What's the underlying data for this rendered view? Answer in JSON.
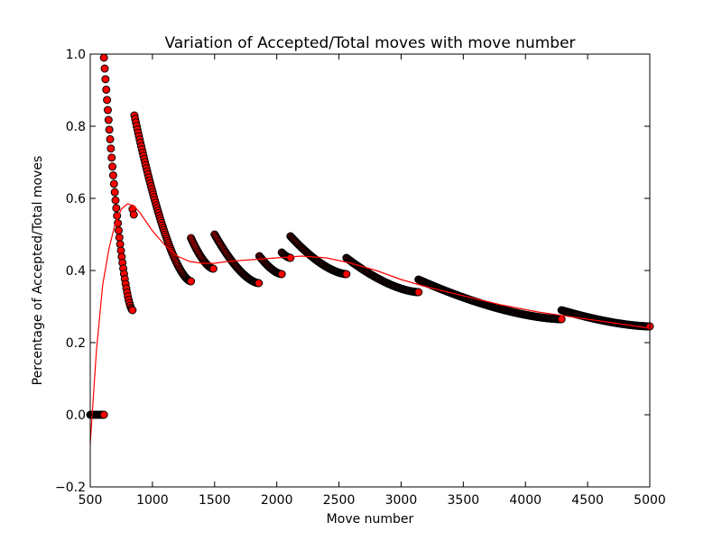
{
  "chart_data": {
    "type": "scatter",
    "title": "Variation of Accepted/Total moves with move number",
    "xlabel": "Move number",
    "ylabel": "Percentage of Accepted/Total moves",
    "xlim": [
      500,
      5000
    ],
    "ylim": [
      -0.2,
      1.0
    ],
    "xticks": [
      500,
      1000,
      1500,
      2000,
      2500,
      3000,
      3500,
      4000,
      4500,
      5000
    ],
    "xtick_labels": [
      "500",
      "1000",
      "1500",
      "2000",
      "2500",
      "3000",
      "3500",
      "4000",
      "4500",
      "5000"
    ],
    "yticks": [
      -0.2,
      0.0,
      0.2,
      0.4,
      0.6,
      0.8,
      1.0
    ],
    "ytick_labels": [
      "−0.2",
      "0.0",
      "0.2",
      "0.4",
      "0.6",
      "0.8",
      "1.0"
    ],
    "grid": false,
    "colors": {
      "marker_fill": "#ff0000",
      "marker_edge": "#000000",
      "fit_line": "#ff0000"
    },
    "series": [
      {
        "type": "scatter",
        "marker": "circle",
        "segments": [
          {
            "x_start": 500,
            "x_end": 610,
            "y_start": 0.0,
            "y_end": 0.0
          },
          {
            "x_start": 610,
            "x_end": 840,
            "y_start": 0.99,
            "y_end": 0.29
          },
          {
            "x_start": 840,
            "x_end": 850,
            "y_start": 0.57,
            "y_end": 0.555
          },
          {
            "x_start": 855,
            "x_end": 1310,
            "y_start": 0.83,
            "y_end": 0.37
          },
          {
            "x_start": 1310,
            "x_end": 1490,
            "y_start": 0.49,
            "y_end": 0.405
          },
          {
            "x_start": 1500,
            "x_end": 1855,
            "y_start": 0.5,
            "y_end": 0.365
          },
          {
            "x_start": 1860,
            "x_end": 2040,
            "y_start": 0.44,
            "y_end": 0.39
          },
          {
            "x_start": 2040,
            "x_end": 2110,
            "y_start": 0.45,
            "y_end": 0.435
          },
          {
            "x_start": 2110,
            "x_end": 2560,
            "y_start": 0.495,
            "y_end": 0.39
          },
          {
            "x_start": 2560,
            "x_end": 3140,
            "y_start": 0.435,
            "y_end": 0.34
          },
          {
            "x_start": 3140,
            "x_end": 4290,
            "y_start": 0.375,
            "y_end": 0.265
          },
          {
            "x_start": 4290,
            "x_end": 5000,
            "y_start": 0.29,
            "y_end": 0.245
          }
        ]
      },
      {
        "type": "line",
        "x": [
          500,
          550,
          600,
          650,
          700,
          750,
          800,
          850,
          900,
          950,
          1000,
          1100,
          1200,
          1300,
          1400,
          1500,
          1600,
          1800,
          2000,
          2200,
          2400,
          2600,
          2800,
          3000,
          3200,
          3500,
          3800,
          4100,
          4400,
          4700,
          5000
        ],
        "y": [
          -0.08,
          0.18,
          0.36,
          0.46,
          0.53,
          0.57,
          0.585,
          0.58,
          0.56,
          0.535,
          0.51,
          0.47,
          0.44,
          0.425,
          0.42,
          0.42,
          0.425,
          0.43,
          0.435,
          0.44,
          0.435,
          0.42,
          0.4,
          0.375,
          0.355,
          0.33,
          0.305,
          0.285,
          0.27,
          0.255,
          0.24
        ]
      }
    ]
  }
}
